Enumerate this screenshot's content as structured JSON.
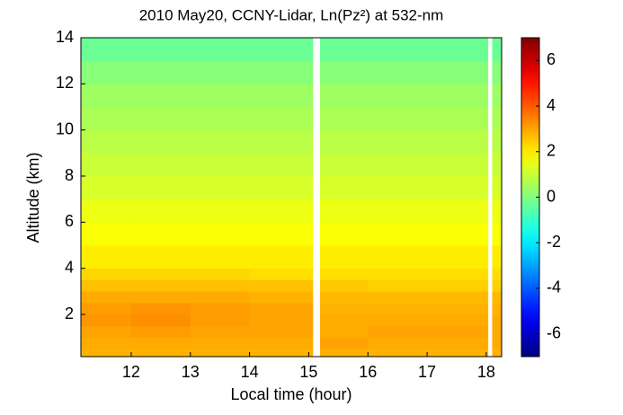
{
  "chart_data": {
    "type": "heatmap",
    "title": "2010 May20, CCNY-Lidar, Ln(Pz²) at 532-nm",
    "xlabel": "Local time (hour)",
    "ylabel": "Altitude (km)",
    "xlim": [
      11.15,
      18.26
    ],
    "ylim": [
      0.17,
      14
    ],
    "xticks": [
      12,
      13,
      14,
      15,
      16,
      17,
      18
    ],
    "yticks": [
      2,
      4,
      6,
      8,
      10,
      12,
      14
    ],
    "colormap": "jet",
    "clim": [
      -7,
      7
    ],
    "cticks": [
      -6,
      -4,
      -2,
      0,
      2,
      4,
      6
    ],
    "xbins": [
      11.15,
      12,
      13,
      14,
      15.07,
      15.19,
      16,
      17,
      18.03,
      18.1,
      18.26
    ],
    "ybins": [
      0.17,
      0.5,
      1,
      1.5,
      2,
      2.5,
      3,
      3.5,
      4,
      5,
      6,
      7,
      8,
      9,
      10,
      11,
      12,
      13,
      14
    ],
    "values": [
      [
        2.8,
        2.8,
        2.8,
        2.8,
        null,
        2.8,
        2.8,
        2.8,
        null,
        2.8
      ],
      [
        2.9,
        2.9,
        2.9,
        2.9,
        null,
        3.0,
        2.9,
        2.9,
        null,
        2.9
      ],
      [
        3.0,
        3.1,
        3.0,
        3.0,
        null,
        2.9,
        3.0,
        3.0,
        null,
        2.9
      ],
      [
        3.2,
        3.3,
        3.1,
        3.0,
        null,
        2.9,
        2.9,
        2.9,
        null,
        2.9
      ],
      [
        3.1,
        3.2,
        3.1,
        3.0,
        null,
        2.8,
        2.8,
        2.8,
        null,
        2.8
      ],
      [
        2.9,
        2.9,
        2.9,
        2.8,
        null,
        2.7,
        2.7,
        2.7,
        null,
        2.7
      ],
      [
        2.6,
        2.6,
        2.6,
        2.6,
        null,
        2.5,
        2.4,
        2.4,
        null,
        2.4
      ],
      [
        2.3,
        2.3,
        2.3,
        2.2,
        null,
        2.2,
        2.2,
        2.2,
        null,
        2.2
      ],
      [
        2.0,
        2.0,
        2.0,
        2.0,
        null,
        2.0,
        2.0,
        2.0,
        null,
        2.0
      ],
      [
        1.7,
        1.7,
        1.7,
        1.7,
        null,
        1.7,
        1.7,
        1.7,
        null,
        1.7
      ],
      [
        1.5,
        1.5,
        1.5,
        1.5,
        null,
        1.5,
        1.5,
        1.5,
        null,
        1.5
      ],
      [
        1.2,
        1.2,
        1.2,
        1.2,
        null,
        1.2,
        1.2,
        1.2,
        null,
        1.2
      ],
      [
        1.0,
        1.0,
        1.0,
        1.0,
        null,
        1.0,
        1.0,
        1.0,
        null,
        1.0
      ],
      [
        0.8,
        0.8,
        0.8,
        0.8,
        null,
        0.8,
        0.8,
        0.8,
        null,
        0.8
      ],
      [
        0.6,
        0.6,
        0.6,
        0.6,
        null,
        0.6,
        0.6,
        0.6,
        null,
        0.6
      ],
      [
        0.4,
        0.4,
        0.4,
        0.4,
        null,
        0.4,
        0.4,
        0.4,
        null,
        0.4
      ],
      [
        0.1,
        0.1,
        0.1,
        0.1,
        null,
        0.1,
        0.1,
        0.1,
        null,
        0.1
      ],
      [
        -0.3,
        -0.3,
        -0.3,
        -0.3,
        null,
        -0.3,
        -0.3,
        -0.3,
        null,
        -0.3
      ]
    ]
  }
}
